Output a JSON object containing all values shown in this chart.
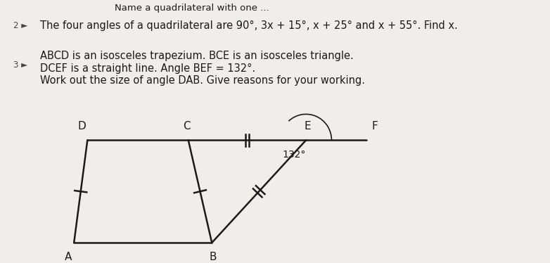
{
  "bg_color": "#f0eeea",
  "text_color": "#1a1a1a",
  "line_color": "#1a1a1a",
  "q2_text": "The four angles of a quadrilateral are 90°, 3x + 15°, x + 25° and x + 55°. Find x.",
  "q3_line1": "ABCD is an isosceles trapezium. BCE is an isosceles triangle.",
  "q3_line2": "DCEF is a straight line. Angle BEF = 132°.",
  "q3_line3": "Work out the size of angle DAB. Give reasons for your working.",
  "top_text": "Name a quadrilateral with one ...",
  "label_A": "A",
  "label_B": "B",
  "label_C": "C",
  "label_D": "D",
  "label_E": "E",
  "label_F": "F",
  "angle_label": "132°",
  "bullet_color": "#444444",
  "num2": "2",
  "num3": "3"
}
